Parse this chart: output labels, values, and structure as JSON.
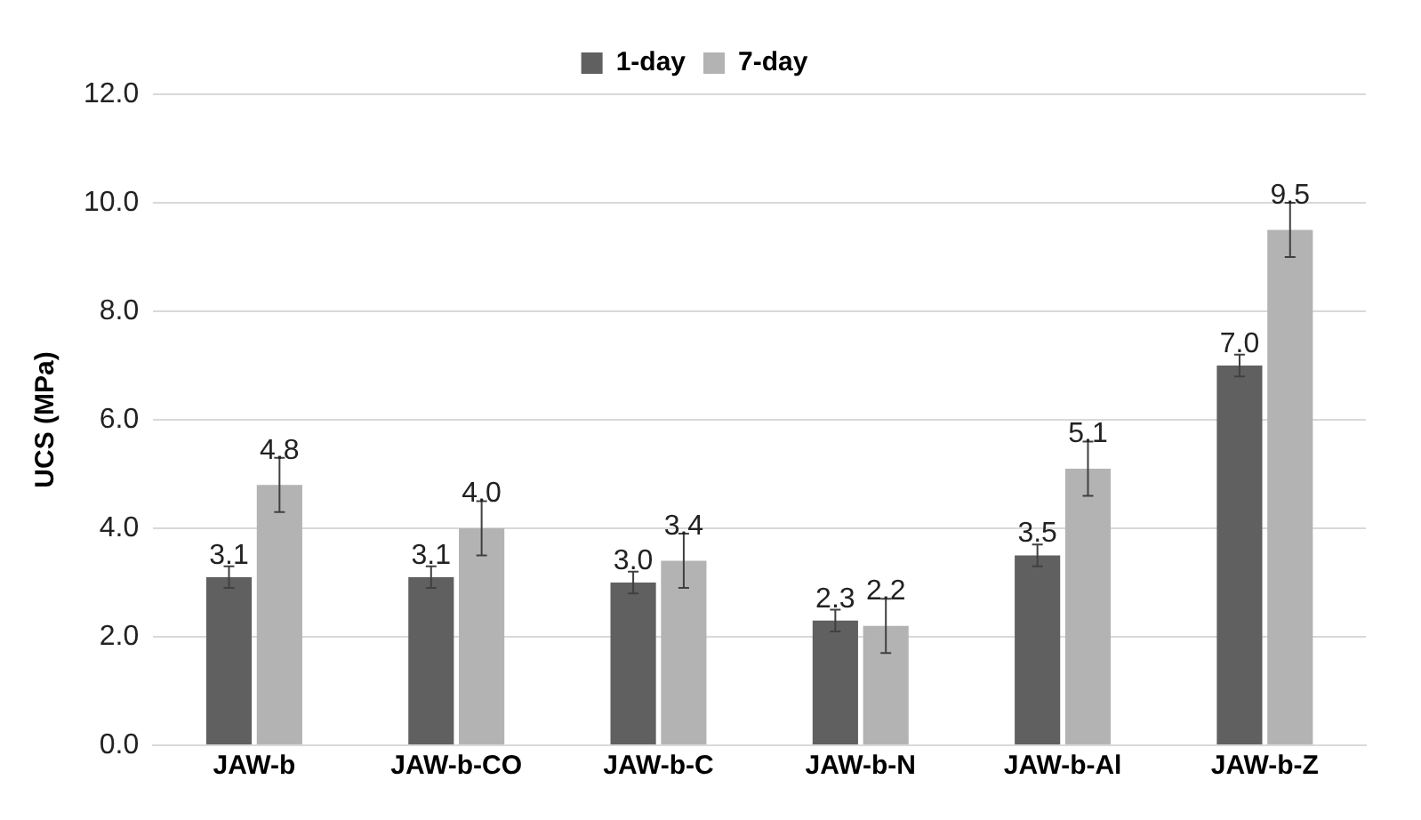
{
  "chart_data": {
    "type": "bar",
    "ylabel": "UCS (MPa)",
    "categories": [
      "JAW-b",
      "JAW-b-CO",
      "JAW-b-C",
      "JAW-b-N",
      "JAW-b-Al",
      "JAW-b-Z"
    ],
    "series": [
      {
        "name": "1-day",
        "color": "#606060",
        "values": [
          3.1,
          3.1,
          3.0,
          2.3,
          3.5,
          7.0
        ],
        "errors": [
          0.2,
          0.2,
          0.2,
          0.2,
          0.2,
          0.2
        ],
        "value_labels": [
          "3.1",
          "3.1",
          "3.0",
          "2.3",
          "3.5",
          "7.0"
        ]
      },
      {
        "name": "7-day",
        "color": "#b3b3b3",
        "values": [
          4.8,
          4.0,
          3.4,
          2.2,
          5.1,
          9.5
        ],
        "errors": [
          0.5,
          0.5,
          0.5,
          0.5,
          0.5,
          0.5
        ],
        "value_labels": [
          "4.8",
          "4.0",
          "3.4",
          "2.2",
          "5.1",
          "9.5"
        ]
      }
    ],
    "ylim": [
      0,
      12
    ],
    "yticks": [
      {
        "value": 0,
        "label": "0.0"
      },
      {
        "value": 2,
        "label": "2.0"
      },
      {
        "value": 4,
        "label": "4.0"
      },
      {
        "value": 6,
        "label": "6.0"
      },
      {
        "value": 8,
        "label": "8.0"
      },
      {
        "value": 10,
        "label": "10.0"
      },
      {
        "value": 12,
        "label": "12.0"
      }
    ],
    "grid": "y",
    "legend": "top"
  }
}
